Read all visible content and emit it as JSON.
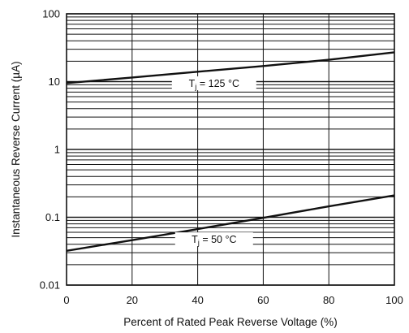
{
  "chart_data": {
    "type": "line",
    "title": "",
    "xlabel": "Percent of Rated Peak Reverse Voltage (%)",
    "ylabel": "Instantaneous Reverse Current (µA)",
    "xlim": [
      0,
      100
    ],
    "ylim": [
      0.01,
      100
    ],
    "y_scale": "log",
    "x_ticks": [
      0,
      20,
      40,
      60,
      80,
      100
    ],
    "x_tick_labels": [
      "0",
      "20",
      "40",
      "60",
      "80",
      "100"
    ],
    "y_ticks": [
      0.01,
      0.1,
      1,
      10,
      100
    ],
    "y_tick_labels": [
      "0.01",
      "0.1",
      "1",
      "10",
      "100"
    ],
    "grid": "major vertical and minor logarithmic horizontal",
    "series": [
      {
        "label_prefix": "T",
        "label_sub": "j",
        "label_suffix": " = 125 °C",
        "label_x": 45,
        "x": [
          0,
          20,
          40,
          60,
          80,
          100
        ],
        "y": [
          9.5,
          11.5,
          14,
          17,
          21,
          27
        ]
      },
      {
        "label_prefix": "T",
        "label_sub": "j",
        "label_suffix": " = 50 °C",
        "label_x": 45,
        "x": [
          0,
          20,
          40,
          60,
          80,
          100
        ],
        "y": [
          0.032,
          0.046,
          0.067,
          0.098,
          0.145,
          0.21
        ]
      }
    ],
    "colors": {
      "line": "#111111",
      "grid": "#111111",
      "background": "#ffffff"
    }
  }
}
